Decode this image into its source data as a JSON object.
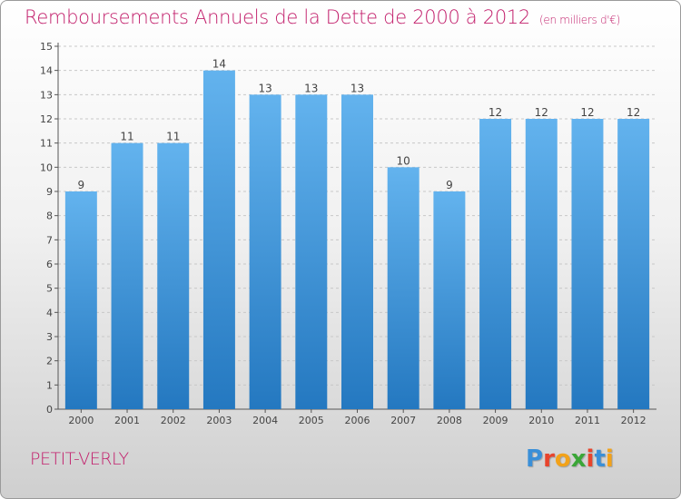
{
  "title": "Remboursements Annuels de la Dette de 2000 à 2012",
  "unit": "(en milliers d'€)",
  "commune": "PETIT-VERLY",
  "logo": {
    "letters": [
      "P",
      "r",
      "o",
      "x",
      "i",
      "t",
      "i"
    ],
    "colors": [
      "#3a8fd8",
      "#e8442c",
      "#f2a21a",
      "#3aa637",
      "#e8442c",
      "#3a8fd8",
      "#f2a21a"
    ]
  },
  "colors": {
    "bar_top": "#63b3ee",
    "bar_bottom": "#2478c0",
    "title": "#c21e6b"
  },
  "chart_data": {
    "type": "bar",
    "title": "Remboursements Annuels de la Dette de 2000 à 2012",
    "subtitle": "(en milliers d'€)",
    "xlabel": "",
    "ylabel": "",
    "categories": [
      "2000",
      "2001",
      "2002",
      "2003",
      "2004",
      "2005",
      "2006",
      "2007",
      "2008",
      "2009",
      "2010",
      "2011",
      "2012"
    ],
    "values": [
      9,
      11,
      11,
      14,
      13,
      13,
      13,
      10,
      9,
      12,
      12,
      12,
      12
    ],
    "ylim": [
      0,
      15
    ],
    "yticks": [
      0,
      1,
      2,
      3,
      4,
      5,
      6,
      7,
      8,
      9,
      10,
      11,
      12,
      13,
      14,
      15
    ],
    "grid": true,
    "legend": "none"
  }
}
